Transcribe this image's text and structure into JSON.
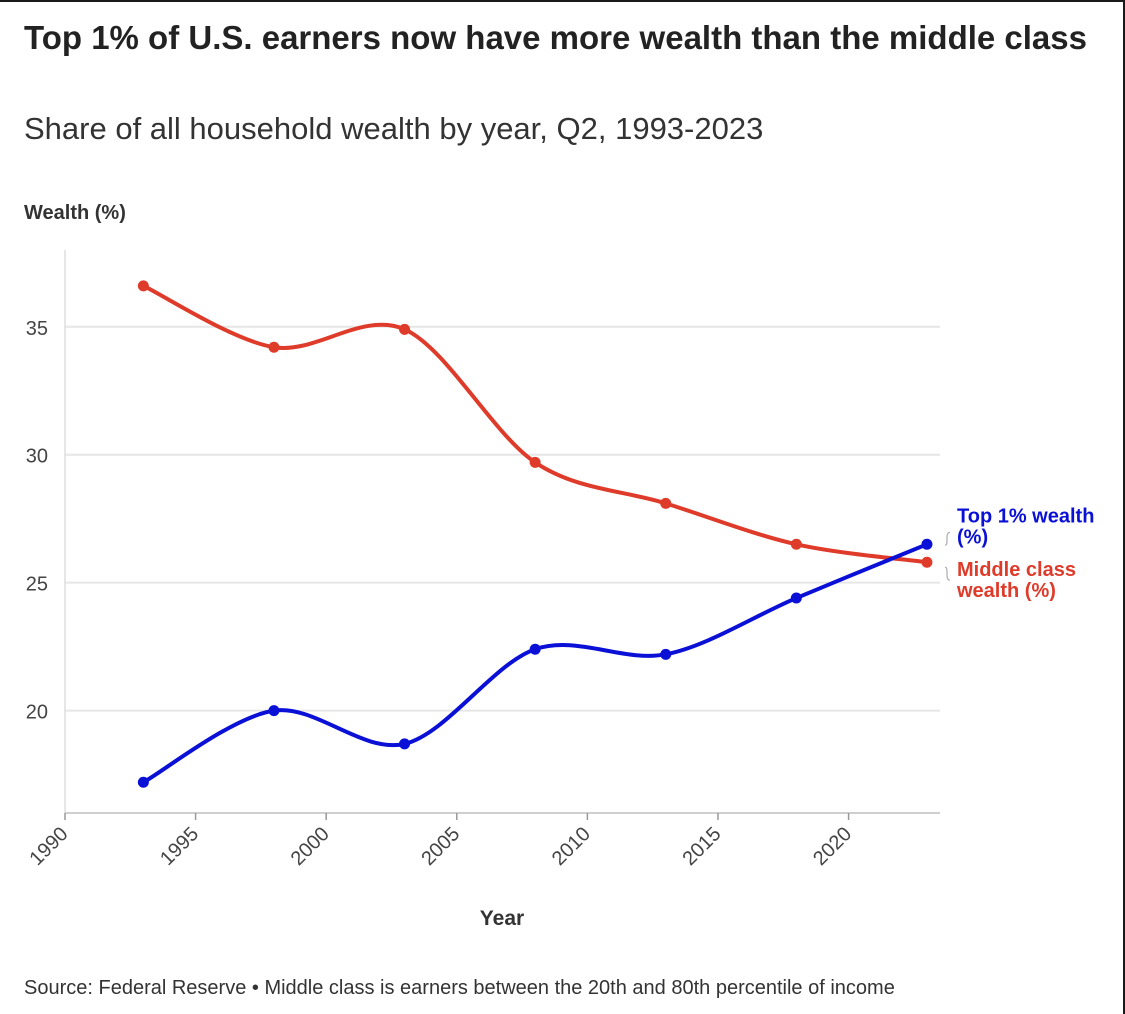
{
  "title": "Top 1% of U.S. earners now have more wealth than the middle class",
  "subtitle": "Share of all household wealth by year, Q2, 1993-2023",
  "footer": "Source: Federal Reserve • Middle class is earners between the 20th and 80th percentile of income",
  "colors": {
    "top1": "#0a10d6",
    "middle": "#df3b2a",
    "grid": "#e6e6e6",
    "axis": "#555555"
  },
  "chart_data": {
    "type": "line",
    "ylabel": "Wealth (%)",
    "xlabel": "Year",
    "xlim": [
      1990,
      2023.5
    ],
    "ylim": [
      16,
      38
    ],
    "x_ticks": [
      1990,
      1995,
      2000,
      2005,
      2010,
      2015,
      2020
    ],
    "y_ticks": [
      20,
      25,
      30,
      35
    ],
    "grid": true,
    "series": [
      {
        "name": "Middle class wealth (%)",
        "label_lines": [
          "Middle class",
          "wealth (%)"
        ],
        "color": "#df3b2a",
        "x": [
          1993,
          1998,
          2003,
          2008,
          2013,
          2018,
          2023
        ],
        "y": [
          36.6,
          34.2,
          34.9,
          29.7,
          28.1,
          26.5,
          25.8
        ]
      },
      {
        "name": "Top 1% wealth (%)",
        "label_lines": [
          "Top 1% wealth",
          "(%)"
        ],
        "color": "#0a10d6",
        "x": [
          1993,
          1998,
          2003,
          2008,
          2013,
          2018,
          2023
        ],
        "y": [
          17.2,
          20.0,
          18.7,
          22.4,
          22.2,
          24.4,
          26.5
        ]
      }
    ]
  }
}
